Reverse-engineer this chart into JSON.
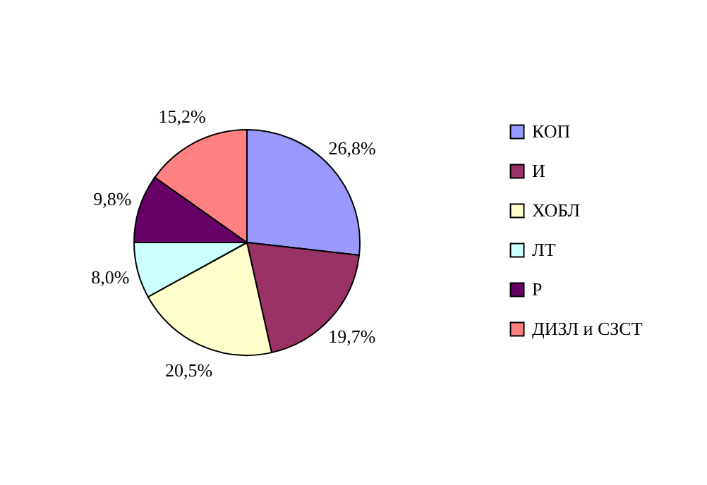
{
  "chart_data": {
    "type": "pie",
    "categories": [
      "КОП",
      "И",
      "ХОБЛ",
      "ЛТ",
      "Р",
      "ДИЗЛ и СЗСТ"
    ],
    "values": [
      26.8,
      19.7,
      20.5,
      8.0,
      9.8,
      15.2
    ],
    "value_labels": [
      "26,8%",
      "19,7%",
      "20,5%",
      "8,0%",
      "9,8%",
      "15,2%"
    ],
    "colors": [
      "#9999ff",
      "#993366",
      "#ffffcc",
      "#ccffff",
      "#660066",
      "#ff8080"
    ],
    "legend": "right"
  }
}
